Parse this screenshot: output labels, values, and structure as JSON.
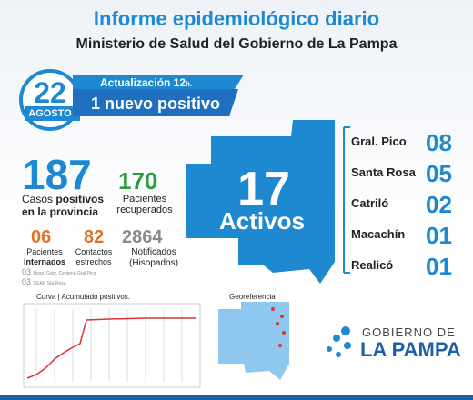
{
  "header": {
    "title": "Informe epidemiológico diario",
    "subtitle": "Ministerio de Salud del Gobierno de La Pampa"
  },
  "date": {
    "day": "22",
    "month": "AGOSTO"
  },
  "update": {
    "label": "Actualización 12",
    "unit": "h.",
    "headline": "1 nuevo positivo"
  },
  "stats": {
    "cases": {
      "value": "187",
      "label_a": "Casos ",
      "label_b": "positivos",
      "label_c": "en la provincia"
    },
    "recovered": {
      "value": "170",
      "label": "Pacientes recuperados"
    },
    "hospitalized": {
      "value": "06",
      "label_a": "Pacientes",
      "label_b": "Internados"
    },
    "contacts": {
      "value": "82",
      "label": "Contactos estrechos"
    },
    "notified": {
      "value": "2864",
      "label": "Notificados (Hisopados)"
    },
    "hospitals": [
      {
        "count": "03",
        "name": "Hosp. Gdor. Centeno Gral Pico"
      },
      {
        "count": "03",
        "name": "CEAR Sta.Rosa"
      }
    ]
  },
  "active": {
    "value": "17",
    "label": "Activos"
  },
  "localities": [
    {
      "name": "Gral. Pico",
      "count": "08"
    },
    {
      "name": "Santa Rosa",
      "count": "05"
    },
    {
      "name": "Catriló",
      "count": "02"
    },
    {
      "name": "Macachín",
      "count": "01"
    },
    {
      "name": "Realicó",
      "count": "01"
    }
  ],
  "curve": {
    "title": "Curva",
    "subtitle": "| Acumulado positivos."
  },
  "georef": {
    "title": "Georeferencia"
  },
  "logo": {
    "line1": "GOBIERNO DE",
    "line2": "LA PAMPA"
  }
}
